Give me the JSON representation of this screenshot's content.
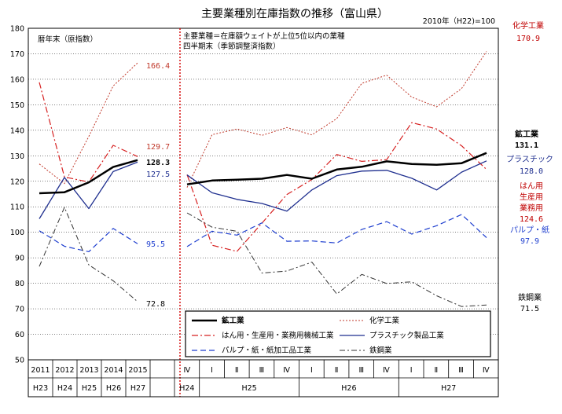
{
  "title": "主要業種別在庫指数の推移（富山県）",
  "base_note": "2010年（H22)=100",
  "annual_note": "暦年末（原指数）",
  "quarter_note_1": "主要業種＝在庫額ウェイトが上位5位以内の業種",
  "quarter_note_2": "四半期末（季節調整済指数）",
  "y_axis": {
    "min": 50,
    "max": 180,
    "step": 10,
    "ticks": [
      "50",
      "60",
      "70",
      "80",
      "90",
      "100",
      "110",
      "120",
      "130",
      "140",
      "150",
      "160",
      "170",
      "180"
    ]
  },
  "annual_years": [
    "2011",
    "2012",
    "2013",
    "2014",
    "2015"
  ],
  "annual_eras": [
    "H23",
    "H24",
    "H25",
    "H26",
    "H27"
  ],
  "quarter_labels": [
    "Ⅳ",
    "Ⅰ",
    "Ⅱ",
    "Ⅲ",
    "Ⅳ",
    "Ⅰ",
    "Ⅱ",
    "Ⅲ",
    "Ⅳ",
    "Ⅰ",
    "Ⅱ",
    "Ⅲ",
    "Ⅳ"
  ],
  "quarter_eras": [
    "H24",
    "H25",
    "H26",
    "H27"
  ],
  "legend": {
    "mining": "鉱工業",
    "chemical": "化学工業",
    "machinery": "はん用・生産用・業務用機械工業",
    "plastic": "プラスチック製品工業",
    "pulp": "パルプ・紙・紙加工品工業",
    "steel": "鉄鋼業"
  },
  "annual_end_labels": {
    "chemical": "166.4",
    "machinery": "129.7",
    "mining": "128.3",
    "plastic": "127.5",
    "pulp": "95.5",
    "steel": "72.8"
  },
  "side_labels": {
    "chemical_name": "化学工業",
    "chemical_value": "170.9",
    "mining_name": "鉱工業",
    "mining_value": "131.1",
    "plastic_name": "プラスチック",
    "plastic_value": "128.0",
    "machinery_name_1": "はん用",
    "machinery_name_2": "生産用",
    "machinery_name_3": "業務用",
    "machinery_value": "124.6",
    "pulp_name": "パルプ・紙",
    "pulp_value": "97.9",
    "steel_name": "鉄鋼業",
    "steel_value": "71.5"
  },
  "colors": {
    "mining": "#000000",
    "chemical": "#c0392b",
    "machinery": "#d62020",
    "plastic": "#1f2f8f",
    "pulp": "#1f3fcf",
    "steel": "#333333",
    "divider": "#d40000"
  },
  "chart_data": {
    "type": "line",
    "ylim": [
      50,
      180
    ],
    "annual": {
      "categories": [
        "2011",
        "2012",
        "2013",
        "2014",
        "2015"
      ],
      "series": [
        {
          "name": "鉱工業",
          "key": "mining",
          "values": [
            115.3,
            115.7,
            119.6,
            125.6,
            128.3
          ]
        },
        {
          "name": "化学工業",
          "key": "chemical",
          "values": [
            126.8,
            119.1,
            137.6,
            157.4,
            166.4
          ]
        },
        {
          "name": "はん用・生産用・業務用機械工業",
          "key": "machinery",
          "values": [
            158.8,
            121.7,
            119.7,
            134.1,
            129.7
          ]
        },
        {
          "name": "プラスチック製品工業",
          "key": "plastic",
          "values": [
            105.3,
            121.5,
            109.3,
            123.8,
            127.5
          ]
        },
        {
          "name": "パルプ・紙・紙加工品工業",
          "key": "pulp",
          "values": [
            100.6,
            94.5,
            92.4,
            101.5,
            95.5
          ]
        },
        {
          "name": "鉄鋼業",
          "key": "steel",
          "values": [
            86.6,
            109.8,
            87.2,
            81.0,
            72.8
          ]
        }
      ]
    },
    "quarterly": {
      "categories": [
        "H24 Ⅳ",
        "H25 Ⅰ",
        "H25 Ⅱ",
        "H25 Ⅲ",
        "H25 Ⅳ",
        "H26 Ⅰ",
        "H26 Ⅱ",
        "H26 Ⅲ",
        "H26 Ⅳ",
        "H27 Ⅰ",
        "H27 Ⅱ",
        "H27 Ⅲ",
        "H27 Ⅳ"
      ],
      "series": [
        {
          "name": "鉱工業",
          "key": "mining",
          "values": [
            118.8,
            120.3,
            120.6,
            121.0,
            122.5,
            121.0,
            124.6,
            125.7,
            127.8,
            126.8,
            126.5,
            127.1,
            131.1
          ]
        },
        {
          "name": "化学工業",
          "key": "chemical",
          "values": [
            117.6,
            138.3,
            140.5,
            138.0,
            141.1,
            138.2,
            144.6,
            158.4,
            161.6,
            153.0,
            149.2,
            156.4,
            170.9
          ]
        },
        {
          "name": "はん用・生産用・業務用機械工業",
          "key": "machinery",
          "values": [
            122.6,
            94.9,
            92.5,
            103.6,
            114.8,
            120.7,
            130.5,
            127.8,
            128.5,
            143.0,
            140.5,
            133.9,
            124.6
          ]
        },
        {
          "name": "プラスチック製品工業",
          "key": "plastic",
          "values": [
            122.5,
            115.5,
            112.9,
            111.3,
            108.3,
            116.6,
            122.2,
            124.0,
            124.3,
            121.2,
            116.6,
            123.6,
            128.0
          ]
        },
        {
          "name": "パルプ・紙・紙加工品工業",
          "key": "pulp",
          "values": [
            94.4,
            100.4,
            98.9,
            103.7,
            96.5,
            96.6,
            95.8,
            101.1,
            104.2,
            99.3,
            102.6,
            107.0,
            97.9
          ]
        },
        {
          "name": "鉄鋼業",
          "key": "steel",
          "values": [
            107.6,
            102.0,
            100.4,
            84.0,
            84.8,
            88.3,
            75.8,
            83.5,
            79.9,
            80.6,
            75.1,
            70.9,
            71.5
          ]
        }
      ]
    }
  }
}
